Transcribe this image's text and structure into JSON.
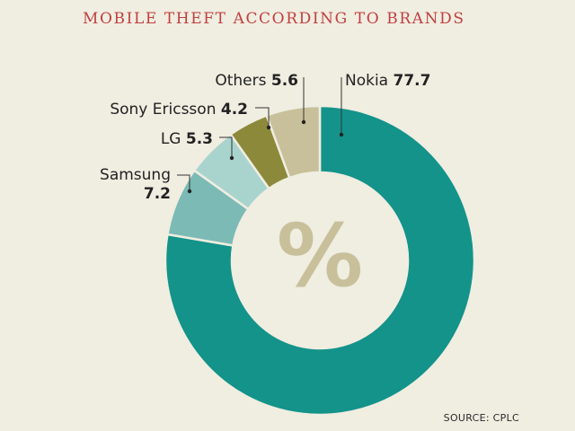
{
  "title": "MOBILE THEFT ACCORDING TO BRANDS",
  "source": "SOURCE: CPLC",
  "center_symbol": "%",
  "colors": {
    "background": "#f0ede1",
    "title": "#c0403f",
    "symbol": "#c8c09a"
  },
  "chart_data": {
    "type": "pie",
    "style": "donut",
    "title": "MOBILE THEFT ACCORDING TO BRANDS",
    "unit": "%",
    "slices": [
      {
        "label": "Nokia",
        "value": 77.7,
        "value_text": "77.7",
        "color": "#13938a"
      },
      {
        "label": "Samsung",
        "value": 7.2,
        "value_text": "7.2",
        "color": "#7cbab6"
      },
      {
        "label": "LG",
        "value": 5.3,
        "value_text": "5.3",
        "color": "#a9d4ce"
      },
      {
        "label": "Sony Ericsson",
        "value": 4.2,
        "value_text": "4.2",
        "color": "#8c8a3a"
      },
      {
        "label": "Others",
        "value": 5.6,
        "value_text": "5.6",
        "color": "#c8c09a"
      }
    ]
  }
}
